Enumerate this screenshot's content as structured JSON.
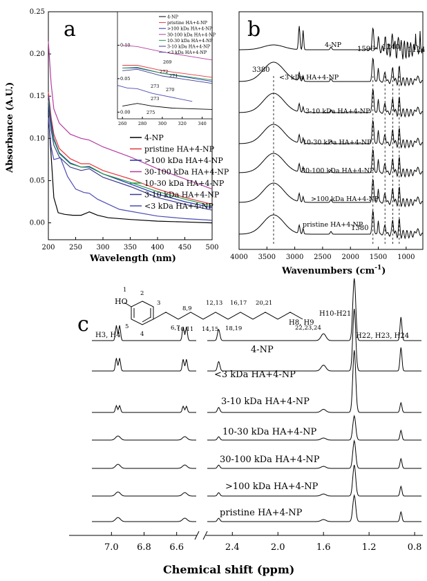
{
  "chart_data": [
    {
      "panel": "a",
      "type": "line",
      "xlabel": "Wavelength (nm)",
      "ylabel": "Absorbance (A.U.)",
      "xlim": [
        200,
        500
      ],
      "ylim": [
        -0.02,
        0.25
      ],
      "xticks": [
        200,
        250,
        300,
        350,
        400,
        450,
        500
      ],
      "yticks": [
        0.0,
        0.05,
        0.1,
        0.15,
        0.2,
        0.25
      ],
      "legend_position": "center-right",
      "series": [
        {
          "name": "4-NP",
          "color": "#000000",
          "points": [
            [
              200,
              0.13
            ],
            [
              205,
              0.08
            ],
            [
              210,
              0.03
            ],
            [
              218,
              0.012
            ],
            [
              230,
              0.01
            ],
            [
              245,
              0.009
            ],
            [
              260,
              0.009
            ],
            [
              275,
              0.013
            ],
            [
              290,
              0.009
            ],
            [
              310,
              0.006
            ],
            [
              350,
              0.004
            ],
            [
              400,
              0.002
            ],
            [
              450,
              0.001
            ],
            [
              500,
              0.0
            ]
          ]
        },
        {
          "name": "pristine HA+4-NP",
          "color": "#e8343c",
          "points": [
            [
              200,
              0.155
            ],
            [
              205,
              0.125
            ],
            [
              210,
              0.105
            ],
            [
              220,
              0.088
            ],
            [
              240,
              0.076
            ],
            [
              260,
              0.07
            ],
            [
              275,
              0.07
            ],
            [
              300,
              0.062
            ],
            [
              350,
              0.052
            ],
            [
              400,
              0.04
            ],
            [
              450,
              0.03
            ],
            [
              500,
              0.022
            ]
          ]
        },
        {
          "name": ">100 kDa HA+4-NP",
          "color": "#2233aa",
          "points": [
            [
              200,
              0.15
            ],
            [
              205,
              0.12
            ],
            [
              210,
              0.1
            ],
            [
              220,
              0.083
            ],
            [
              240,
              0.071
            ],
            [
              260,
              0.066
            ],
            [
              275,
              0.066
            ],
            [
              300,
              0.058
            ],
            [
              350,
              0.046
            ],
            [
              400,
              0.034
            ],
            [
              450,
              0.025
            ],
            [
              500,
              0.018
            ]
          ]
        },
        {
          "name": "30-100 kDa HA+4-NP",
          "color": "#b43ca0",
          "points": [
            [
              200,
              0.215
            ],
            [
              205,
              0.165
            ],
            [
              210,
              0.135
            ],
            [
              220,
              0.118
            ],
            [
              240,
              0.105
            ],
            [
              260,
              0.1
            ],
            [
              275,
              0.098
            ],
            [
              300,
              0.09
            ],
            [
              350,
              0.078
            ],
            [
              400,
              0.064
            ],
            [
              450,
              0.052
            ],
            [
              500,
              0.04
            ]
          ]
        },
        {
          "name": "10-30 kDa HA+4-NP",
          "color": "#22994a",
          "points": [
            [
              200,
              0.145
            ],
            [
              205,
              0.115
            ],
            [
              210,
              0.098
            ],
            [
              220,
              0.082
            ],
            [
              240,
              0.07
            ],
            [
              260,
              0.066
            ],
            [
              275,
              0.067
            ],
            [
              300,
              0.058
            ],
            [
              350,
              0.048
            ],
            [
              400,
              0.037
            ],
            [
              450,
              0.028
            ],
            [
              500,
              0.02
            ]
          ]
        },
        {
          "name": "3-10 kDa HA+4-NP",
          "color": "#3a3a8c",
          "points": [
            [
              200,
              0.14
            ],
            [
              205,
              0.11
            ],
            [
              210,
              0.092
            ],
            [
              220,
              0.078
            ],
            [
              240,
              0.066
            ],
            [
              260,
              0.062
            ],
            [
              275,
              0.064
            ],
            [
              300,
              0.054
            ],
            [
              350,
              0.043
            ],
            [
              400,
              0.03
            ],
            [
              450,
              0.022
            ],
            [
              500,
              0.015
            ]
          ]
        },
        {
          "name": "<3 kDa HA+4-NP",
          "color": "#4a4ab4",
          "points": [
            [
              200,
              0.125
            ],
            [
              205,
              0.09
            ],
            [
              210,
              0.075
            ],
            [
              222,
              0.077
            ],
            [
              235,
              0.055
            ],
            [
              250,
              0.04
            ],
            [
              265,
              0.036
            ],
            [
              275,
              0.035
            ],
            [
              290,
              0.028
            ],
            [
              330,
              0.016
            ],
            [
              400,
              0.008
            ],
            [
              450,
              0.005
            ],
            [
              500,
              0.003
            ]
          ]
        }
      ],
      "inset": {
        "xlim": [
          255,
          350
        ],
        "ylim": [
          -0.01,
          0.15
        ],
        "xticks": [
          260,
          280,
          300,
          320,
          340
        ],
        "yticks": [
          0.0,
          0.05,
          0.1
        ],
        "peak_labels": [
          "269",
          "272",
          "271",
          "270",
          "273",
          "273",
          "275"
        ],
        "legend": [
          "4-NP",
          "pristine HA+4-NP",
          ">100 kDa HA+4-NP",
          "30-100 kDa HA+4-NP",
          "10-30 kDa HA+4-NP",
          "3-10 kDa HA+4-NP",
          "<3 kDa HA+4-NP"
        ]
      }
    },
    {
      "panel": "b",
      "type": "line",
      "xlabel": "Wavenumbers (cm",
      "xlabel_sup": "-1",
      "xlabel_close": ")",
      "xlim": [
        4000,
        700
      ],
      "xticks": [
        4000,
        3500,
        3000,
        2500,
        2000,
        1500,
        1000
      ],
      "trace_labels": [
        "4-NP",
        "<3 kDa HA+4-NP",
        "3-10 kDa HA+4-NP",
        "10-30 kDa HA+4-NP",
        "30-100 kDa HA+4-NP",
        ">100 kDa HA+4-NP",
        "pristine HA+4-NP"
      ],
      "annotations": [
        "3380",
        "1596",
        "1240",
        "1124",
        "1380"
      ],
      "reference_lines": [
        3380,
        1596,
        1380,
        1240,
        1124
      ]
    },
    {
      "panel": "c",
      "type": "line",
      "xlabel": "Chemical shift (ppm)",
      "xticks": [
        7.0,
        6.8,
        6.6,
        2.4,
        2.0,
        1.6,
        1.2,
        0.8
      ],
      "axis_break": true,
      "trace_labels": [
        "4-NP",
        "<3 kDa HA+4-NP",
        "3-10 kDa HA+4-NP",
        "10-30 kDa HA+4-NP",
        "30-100 kDa HA+4-NP",
        ">100 kDa HA+4-NP",
        "pristine HA+4-NP"
      ],
      "peak_labels": [
        "H3, H4",
        "H8, H9",
        "H10-H21",
        "H22, H23, H24"
      ],
      "structure_labels": [
        "HO",
        "1",
        "2",
        "3",
        "4",
        "5",
        "6,7",
        "8,9",
        "10,11",
        "12,13",
        "14,15",
        "16,17",
        "18,19",
        "20,21",
        "22,23,24"
      ]
    }
  ],
  "panel_letters": [
    "a",
    "b",
    "c"
  ]
}
